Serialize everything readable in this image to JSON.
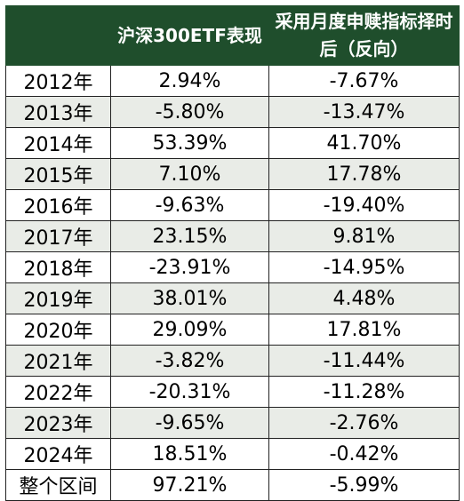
{
  "headers": [
    "",
    "沪深300ETF表现",
    "采用月度申赎指标择时后（反向）"
  ],
  "rows": [
    {
      "year": "2012年",
      "etf": "2.94%",
      "timed": "-7.67%"
    },
    {
      "year": "2013年",
      "etf": "-5.80%",
      "timed": "-13.47%"
    },
    {
      "year": "2014年",
      "etf": "53.39%",
      "timed": "41.70%"
    },
    {
      "year": "2015年",
      "etf": "7.10%",
      "timed": "17.78%"
    },
    {
      "year": "2016年",
      "etf": "-9.63%",
      "timed": "-19.40%"
    },
    {
      "year": "2017年",
      "etf": "23.15%",
      "timed": "9.81%"
    },
    {
      "year": "2018年",
      "etf": "-23.91%",
      "timed": "-14.95%"
    },
    {
      "year": "2019年",
      "etf": "38.01%",
      "timed": "4.48%"
    },
    {
      "year": "2020年",
      "etf": "29.09%",
      "timed": "17.81%"
    },
    {
      "year": "2021年",
      "etf": "-3.82%",
      "timed": "-11.44%"
    },
    {
      "year": "2022年",
      "etf": "-20.31%",
      "timed": "-11.28%"
    },
    {
      "year": "2023年",
      "etf": "-9.65%",
      "timed": "-2.76%"
    },
    {
      "year": "2024年",
      "etf": "18.51%",
      "timed": "-0.42%"
    },
    {
      "year": "整个区间",
      "etf": "97.21%",
      "timed": "-5.99%"
    }
  ],
  "colors": {
    "header_bg": "#1f4e2c",
    "header_text": "#ffffff",
    "stripe": "#e9ece7"
  }
}
